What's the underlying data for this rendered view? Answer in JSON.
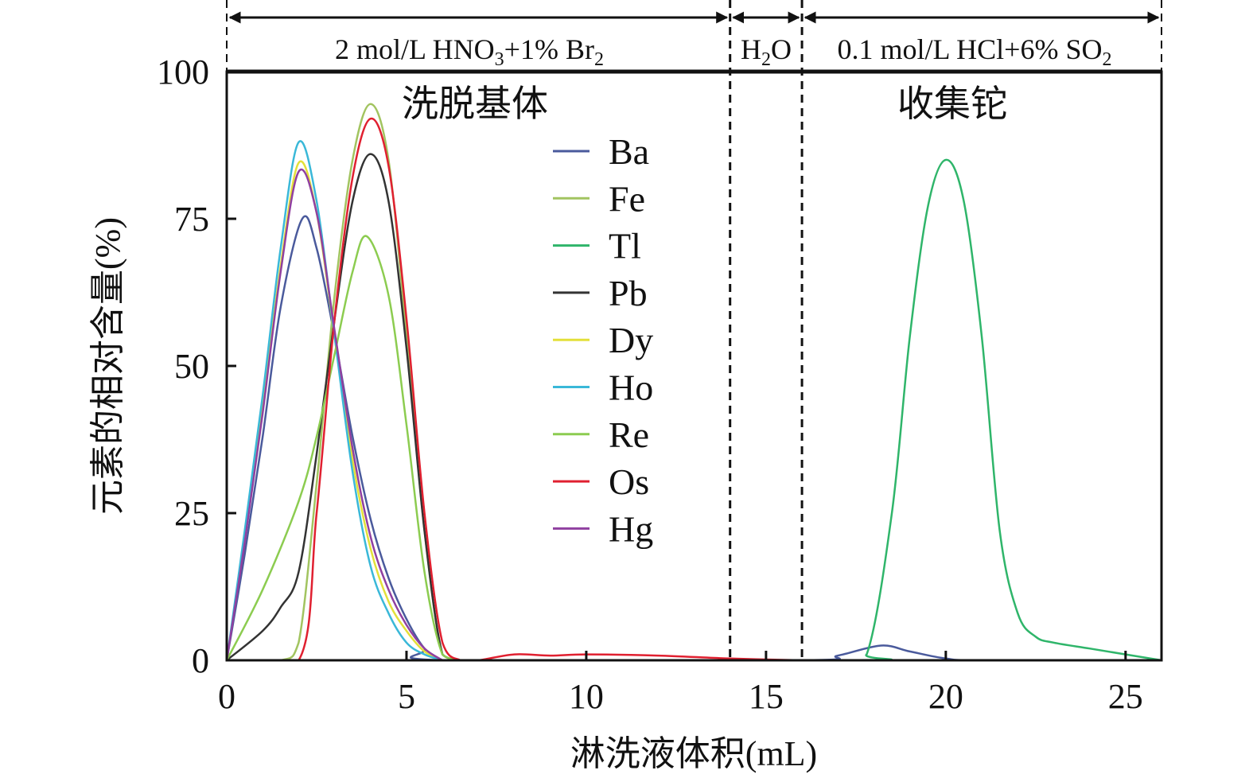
{
  "chart_data": {
    "type": "line",
    "xlabel": "淋洗液体积(mL)",
    "ylabel": "元素的相对含量(%)",
    "xlim": [
      0,
      26
    ],
    "ylim": [
      0,
      100
    ],
    "xticks": [
      "0",
      "5",
      "10",
      "15",
      "20",
      "25"
    ],
    "yticks": [
      "0",
      "25",
      "50",
      "75",
      "100"
    ],
    "legend_position": "top-center",
    "grid": false,
    "phase_boundaries": [
      14,
      16
    ],
    "phases": [
      {
        "from": 0,
        "to": 14,
        "parts": [
          "2 mol/L HNO",
          "3",
          "+1% Br",
          "2"
        ]
      },
      {
        "from": 14,
        "to": 16,
        "parts": [
          "H",
          "2",
          "O"
        ]
      },
      {
        "from": 16,
        "to": 26,
        "parts": [
          "0.1 mol/L HCl+6% SO",
          "2"
        ]
      }
    ],
    "annotations": [
      "洗脱基体",
      "收集铊"
    ],
    "series": [
      {
        "name": "Ba",
        "color": "#4a5a9c",
        "x": [
          0,
          0.5,
          1,
          1.5,
          2.1,
          2.5,
          3,
          3.5,
          4,
          4.5,
          5,
          5.5,
          6,
          16,
          17,
          18.2,
          19,
          20,
          21,
          26
        ],
        "y": [
          0,
          18,
          38,
          60,
          75,
          70,
          55,
          38,
          24,
          14,
          7,
          2,
          0,
          0,
          0.8,
          2.5,
          1.5,
          0.3,
          0,
          0
        ]
      },
      {
        "name": "Fe",
        "color": "#a2c460",
        "x": [
          0,
          1.5,
          2,
          2.5,
          3,
          3.5,
          4,
          4.5,
          5,
          5.5,
          6,
          6.5
        ],
        "y": [
          0,
          0,
          3,
          30,
          62,
          85,
          94.5,
          85,
          55,
          22,
          1,
          0
        ]
      },
      {
        "name": "Tl",
        "color": "#2fb56a",
        "x": [
          0,
          17,
          17.8,
          18.5,
          19,
          19.5,
          20,
          20.5,
          21,
          21.5,
          22,
          22.5,
          23,
          24,
          25,
          26
        ],
        "y": [
          0,
          0,
          1,
          25,
          55,
          77,
          85,
          78,
          55,
          22,
          8,
          4,
          3,
          2,
          1,
          0
        ]
      },
      {
        "name": "Pb",
        "color": "#333333",
        "x": [
          0,
          1,
          1.5,
          2,
          2.5,
          3,
          3.5,
          4,
          4.5,
          5,
          5.5,
          6,
          6.5
        ],
        "y": [
          0,
          5,
          9,
          15,
          35,
          58,
          78,
          86,
          78,
          53,
          22,
          1,
          0
        ]
      },
      {
        "name": "Dy",
        "color": "#e3e03a",
        "x": [
          0,
          0.5,
          1,
          1.5,
          2,
          2.5,
          3,
          3.5,
          4,
          4.5,
          5,
          5.5,
          6
        ],
        "y": [
          0,
          21,
          43,
          67,
          84.5,
          76,
          55,
          34,
          19,
          10,
          5,
          1.5,
          0
        ]
      },
      {
        "name": "Ho",
        "color": "#3ab8d8",
        "x": [
          0,
          0.5,
          1,
          1.5,
          2,
          2.5,
          3,
          3.5,
          4,
          4.5,
          5,
          5.5,
          6
        ],
        "y": [
          0,
          22,
          45,
          70,
          88,
          78,
          55,
          32,
          16,
          8,
          3,
          1,
          0
        ]
      },
      {
        "name": "Re",
        "color": "#8ccc50",
        "x": [
          0,
          1,
          2,
          2.5,
          3,
          3.5,
          3.9,
          4.5,
          5,
          5.5,
          6,
          6.5
        ],
        "y": [
          0,
          12,
          27,
          38,
          52,
          66,
          72,
          62,
          40,
          15,
          1,
          0
        ]
      },
      {
        "name": "Os",
        "color": "#e02030",
        "x": [
          0,
          2,
          2.5,
          3,
          3.5,
          4,
          4.5,
          5,
          5.5,
          6,
          6.5,
          7,
          8,
          9,
          10,
          12,
          14,
          16
        ],
        "y": [
          0,
          0,
          25,
          58,
          82,
          92,
          84,
          58,
          25,
          3,
          0,
          0,
          1,
          0.8,
          1,
          0.8,
          0.3,
          0
        ]
      },
      {
        "name": "Hg",
        "color": "#9040a0",
        "x": [
          0,
          0.5,
          1,
          1.5,
          2,
          2.5,
          3,
          3.5,
          4,
          4.5,
          5,
          5.5,
          6
        ],
        "y": [
          0,
          20,
          42,
          66,
          83,
          76,
          56,
          36,
          21,
          12,
          6,
          2,
          0
        ]
      }
    ]
  }
}
